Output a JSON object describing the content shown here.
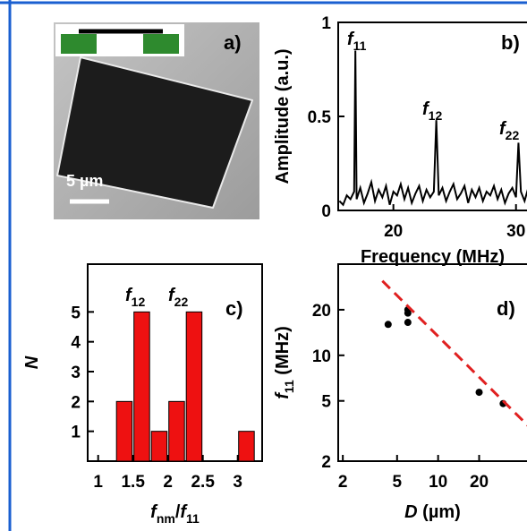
{
  "panel_a": {
    "label": "a)",
    "scale_bar": "5 µm"
  },
  "chart_data": [
    {
      "type": "line",
      "panel_label": "b)",
      "x_label": [
        {
          "text": "Frequency (MHz)"
        }
      ],
      "y_label": [
        {
          "text": "Amplitude (a.u.)"
        }
      ],
      "color": "#000000",
      "xlim": [
        15.5,
        31.7
      ],
      "ylim": [
        0,
        1
      ],
      "xticks": [
        20,
        30
      ],
      "yticks": [
        0,
        0.5,
        1
      ],
      "annotations": [
        [
          {
            "text": "f",
            "style": "italic"
          },
          {
            "text": "11",
            "style": "sub"
          }
        ],
        [
          {
            "text": "f",
            "style": "italic"
          },
          {
            "text": "12",
            "style": "sub"
          }
        ],
        [
          {
            "text": "f",
            "style": "italic"
          },
          {
            "text": "22",
            "style": "sub"
          }
        ]
      ],
      "x": [
        15.6,
        15.9,
        16.2,
        16.5,
        16.8,
        16.9,
        17.0,
        17.3,
        17.6,
        17.9,
        18.2,
        18.5,
        18.8,
        19.1,
        19.4,
        19.7,
        20.0,
        20.3,
        20.6,
        20.9,
        21.2,
        21.5,
        21.8,
        22.1,
        22.4,
        22.7,
        23.0,
        23.3,
        23.5,
        23.7,
        24.0,
        24.3,
        24.6,
        24.9,
        25.2,
        25.5,
        25.8,
        26.1,
        26.4,
        26.7,
        27.0,
        27.3,
        27.6,
        27.9,
        28.2,
        28.5,
        28.8,
        29.1,
        29.4,
        29.7,
        30.0,
        30.2,
        30.4,
        30.7,
        31.0,
        31.3,
        31.6
      ],
      "values": [
        0.05,
        0.03,
        0.08,
        0.06,
        0.1,
        0.85,
        0.06,
        0.12,
        0.04,
        0.09,
        0.15,
        0.05,
        0.11,
        0.07,
        0.13,
        0.03,
        0.1,
        0.08,
        0.14,
        0.06,
        0.12,
        0.04,
        0.09,
        0.13,
        0.05,
        0.11,
        0.07,
        0.1,
        0.48,
        0.08,
        0.12,
        0.05,
        0.1,
        0.14,
        0.06,
        0.09,
        0.13,
        0.04,
        0.11,
        0.07,
        0.12,
        0.05,
        0.1,
        0.08,
        0.13,
        0.06,
        0.11,
        0.04,
        0.09,
        0.12,
        0.07,
        0.36,
        0.1,
        0.05,
        0.12,
        0.07,
        0.09
      ]
    },
    {
      "type": "histogram",
      "panel_label": "c)",
      "x_label": [
        {
          "text": "f",
          "style": "italic"
        },
        {
          "text": "nm",
          "style": "sub"
        },
        {
          "text": "/"
        },
        {
          "text": "f",
          "style": "italic"
        },
        {
          "text": "11",
          "style": "sub"
        }
      ],
      "y_label": [
        {
          "text": "N",
          "style": "italic"
        }
      ],
      "color": "#ee1111",
      "xlim": [
        0.85,
        3.35
      ],
      "ylim": [
        0,
        6.6
      ],
      "xticks": [
        1,
        1.5,
        2,
        2.5,
        3
      ],
      "yticks": [
        1,
        2,
        3,
        4,
        5
      ],
      "annotations": [
        [
          {
            "text": "f",
            "style": "italic"
          },
          {
            "text": "12",
            "style": "sub"
          }
        ],
        [
          {
            "text": "f",
            "style": "italic"
          },
          {
            "text": "22",
            "style": "sub"
          }
        ]
      ],
      "bins": [
        1.25,
        1.5,
        1.75,
        2.0,
        2.25,
        2.5,
        2.75,
        3.0,
        3.25
      ],
      "values": [
        2,
        5,
        1,
        2,
        5,
        0,
        0,
        1
      ]
    },
    {
      "type": "scatter",
      "panel_label": "d)",
      "log_scale": true,
      "x_label": [
        {
          "text": "D",
          "style": "italic"
        },
        {
          "text": " (µm)"
        }
      ],
      "y_label": [
        {
          "text": "f",
          "style": "italic"
        },
        {
          "text": "11",
          "style": "sub"
        },
        {
          "text": " (MHz)"
        }
      ],
      "xlim": [
        1.85,
        53
      ],
      "ylim": [
        2,
        40
      ],
      "xticks": [
        2,
        5,
        10,
        20
      ],
      "yticks": [
        2,
        5,
        10,
        20
      ],
      "series": [
        {
          "mode": "markers",
          "color": "#000000",
          "x": [
            4.3,
            6,
            6,
            6,
            20,
            30
          ],
          "values": [
            16,
            19,
            20,
            16.5,
            5.7,
            4.8
          ]
        },
        {
          "mode": "dashed",
          "color": "#e02020",
          "x": [
            3.9,
            53
          ],
          "values": [
            31,
            3.0
          ]
        }
      ]
    }
  ]
}
